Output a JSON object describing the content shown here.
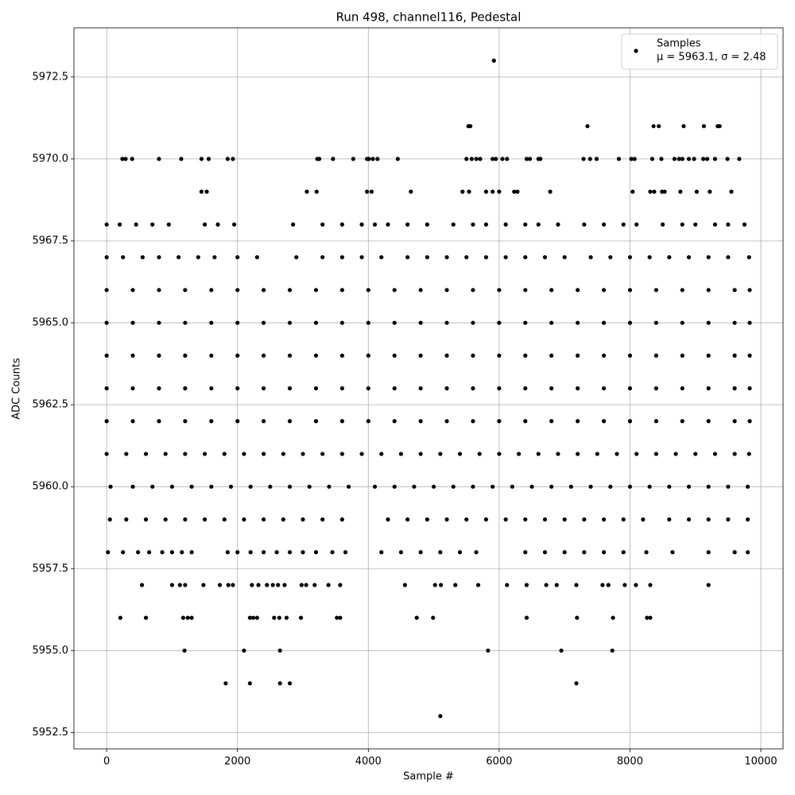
{
  "chart_data": {
    "type": "scatter",
    "title": "Run 498, channel116, Pedestal",
    "x_label": "Sample #",
    "y_label": "ADC Counts",
    "annotation": "μ = 5963.1, σ = 2.48",
    "legend": "upper right",
    "grid": true,
    "xlim": [
      -500,
      10340
    ],
    "ylim": [
      5952.0,
      5974.0
    ],
    "xticks": [
      0,
      2000,
      4000,
      6000,
      8000,
      10000
    ],
    "yticks": [
      5952.5,
      {
        "value": 5955,
        "label": "5955.0"
      },
      5957.5,
      {
        "value": 5960,
        "label": "5960.0"
      },
      5962.5,
      {
        "value": 5965,
        "label": "5965.0"
      },
      5967.5,
      {
        "value": 5970,
        "label": "5970.0"
      },
      5972.5
    ],
    "series": [
      {
        "name": "Samples",
        "color": "#000000",
        "x": [
          5920,
          5100,
          1820,
          2190,
          2650,
          2800,
          7180,
          1190,
          2100,
          2650,
          5830,
          6950,
          7730,
          210,
          600,
          1170,
          1240,
          1300,
          2190,
          2240,
          2300,
          2560,
          2640,
          2750,
          2970,
          3520,
          3570,
          4740,
          4990,
          6420,
          7190,
          7740,
          8260,
          8310,
          540,
          1000,
          1120,
          1200,
          1480,
          1730,
          1860,
          1930,
          2220,
          2320,
          2450,
          2540,
          2620,
          2720,
          2980,
          3050,
          3180,
          3390,
          3570,
          4560,
          5020,
          5110,
          5330,
          5680,
          6120,
          6420,
          6720,
          6880,
          7180,
          7580,
          7670,
          7920,
          8090,
          8310,
          9200,
          20,
          250,
          480,
          650,
          850,
          1000,
          1150,
          1300,
          1850,
          2000,
          2200,
          2400,
          2600,
          2800,
          3000,
          3200,
          3450,
          3650,
          4200,
          4500,
          4800,
          5100,
          5400,
          5650,
          6400,
          6700,
          7000,
          7300,
          7600,
          7900,
          8250,
          8650,
          9200,
          9600,
          9800,
          50,
          300,
          600,
          900,
          1200,
          1500,
          1800,
          2100,
          2400,
          2700,
          3000,
          3300,
          3600,
          4300,
          4600,
          4900,
          5200,
          5500,
          5800,
          6100,
          6400,
          6700,
          7000,
          7300,
          7600,
          7900,
          8200,
          8600,
          8900,
          9200,
          9500,
          9800,
          60,
          400,
          700,
          1000,
          1300,
          1600,
          1900,
          2200,
          2500,
          2800,
          3100,
          3400,
          3700,
          4100,
          4400,
          4700,
          5000,
          5300,
          5600,
          5900,
          6200,
          6500,
          6800,
          7100,
          7400,
          7700,
          8000,
          8300,
          8600,
          8900,
          9200,
          9500,
          9800,
          0,
          300,
          600,
          900,
          1200,
          1500,
          1800,
          2100,
          2400,
          2700,
          3000,
          3300,
          3600,
          3900,
          4200,
          4500,
          4800,
          5100,
          5400,
          5700,
          6000,
          6300,
          6600,
          6900,
          7200,
          7500,
          7800,
          8100,
          8400,
          8700,
          9000,
          9300,
          9600,
          9820,
          0,
          400,
          800,
          1200,
          1600,
          2000,
          2400,
          2800,
          3200,
          3600,
          4000,
          4400,
          4800,
          5200,
          5600,
          6000,
          6400,
          6800,
          7200,
          7600,
          8000,
          8400,
          8800,
          9200,
          9600,
          9830,
          0,
          400,
          800,
          1200,
          1600,
          2000,
          2400,
          2800,
          3200,
          3600,
          4000,
          4400,
          4800,
          5200,
          5600,
          6000,
          6400,
          6800,
          7200,
          7600,
          8000,
          8400,
          8800,
          9200,
          9600,
          9830,
          0,
          400,
          800,
          1200,
          1600,
          2000,
          2400,
          2800,
          3200,
          3600,
          4000,
          4400,
          4800,
          5200,
          5600,
          6000,
          6400,
          6800,
          7200,
          7600,
          8000,
          8400,
          8800,
          9200,
          9600,
          9830,
          0,
          400,
          800,
          1200,
          1600,
          2000,
          2400,
          2800,
          3200,
          3600,
          4000,
          4400,
          4800,
          5200,
          5600,
          6000,
          6400,
          6800,
          7200,
          7600,
          8000,
          8400,
          8800,
          9200,
          9600,
          9830,
          0,
          400,
          800,
          1200,
          1600,
          2000,
          2400,
          2800,
          3200,
          3600,
          4000,
          4400,
          4800,
          5200,
          5600,
          6000,
          6400,
          6800,
          7200,
          7600,
          8000,
          8400,
          8800,
          9200,
          9600,
          9830,
          0,
          250,
          550,
          800,
          1100,
          1400,
          1650,
          2000,
          2300,
          2900,
          3300,
          3600,
          3900,
          4200,
          4600,
          4900,
          5200,
          5500,
          5800,
          6100,
          6400,
          6700,
          7000,
          7400,
          7700,
          8000,
          8300,
          8600,
          8900,
          9200,
          9500,
          9820,
          0,
          200,
          450,
          700,
          950,
          1500,
          1700,
          1950,
          2850,
          3300,
          3600,
          3900,
          4100,
          4300,
          4600,
          4900,
          5300,
          5600,
          5800,
          6100,
          6400,
          6600,
          6900,
          7300,
          7600,
          7900,
          8100,
          8500,
          8800,
          9000,
          9300,
          9500,
          9750,
          1450,
          1530,
          3060,
          3210,
          3980,
          4050,
          4650,
          5440,
          5540,
          5800,
          5900,
          6000,
          6230,
          6280,
          6780,
          8040,
          8310,
          8370,
          8490,
          8530,
          8770,
          9020,
          9220,
          9550,
          240,
          290,
          390,
          800,
          1140,
          1450,
          1560,
          1850,
          1930,
          3220,
          3250,
          3460,
          3770,
          3980,
          4010,
          4070,
          4140,
          4450,
          5500,
          5580,
          5650,
          5710,
          5900,
          5950,
          6050,
          6120,
          6420,
          6470,
          6600,
          6630,
          7290,
          7390,
          7490,
          7830,
          8020,
          8070,
          8340,
          8480,
          8680,
          8750,
          8800,
          8900,
          8980,
          9120,
          9180,
          9300,
          9490,
          9670,
          5530,
          5560,
          7350,
          8360,
          8440,
          8820,
          9130,
          9340,
          9370
        ],
        "values": [
          5973,
          5953,
          5954,
          5954,
          5954,
          5954,
          5954,
          5955,
          5955,
          5955,
          5955,
          5955,
          5955,
          5956,
          5956,
          5956,
          5956,
          5956,
          5956,
          5956,
          5956,
          5956,
          5956,
          5956,
          5956,
          5956,
          5956,
          5956,
          5956,
          5956,
          5956,
          5956,
          5956,
          5956,
          5957,
          5957,
          5957,
          5957,
          5957,
          5957,
          5957,
          5957,
          5957,
          5957,
          5957,
          5957,
          5957,
          5957,
          5957,
          5957,
          5957,
          5957,
          5957,
          5957,
          5957,
          5957,
          5957,
          5957,
          5957,
          5957,
          5957,
          5957,
          5957,
          5957,
          5957,
          5957,
          5957,
          5957,
          5957,
          5958,
          5958,
          5958,
          5958,
          5958,
          5958,
          5958,
          5958,
          5958,
          5958,
          5958,
          5958,
          5958,
          5958,
          5958,
          5958,
          5958,
          5958,
          5958,
          5958,
          5958,
          5958,
          5958,
          5958,
          5958,
          5958,
          5958,
          5958,
          5958,
          5958,
          5958,
          5958,
          5958,
          5958,
          5958,
          5959,
          5959,
          5959,
          5959,
          5959,
          5959,
          5959,
          5959,
          5959,
          5959,
          5959,
          5959,
          5959,
          5959,
          5959,
          5959,
          5959,
          5959,
          5959,
          5959,
          5959,
          5959,
          5959,
          5959,
          5959,
          5959,
          5959,
          5959,
          5959,
          5959,
          5959,
          5959,
          5960,
          5960,
          5960,
          5960,
          5960,
          5960,
          5960,
          5960,
          5960,
          5960,
          5960,
          5960,
          5960,
          5960,
          5960,
          5960,
          5960,
          5960,
          5960,
          5960,
          5960,
          5960,
          5960,
          5960,
          5960,
          5960,
          5960,
          5960,
          5960,
          5960,
          5960,
          5960,
          5960,
          5961,
          5961,
          5961,
          5961,
          5961,
          5961,
          5961,
          5961,
          5961,
          5961,
          5961,
          5961,
          5961,
          5961,
          5961,
          5961,
          5961,
          5961,
          5961,
          5961,
          5961,
          5961,
          5961,
          5961,
          5961,
          5961,
          5961,
          5961,
          5961,
          5961,
          5961,
          5961,
          5961,
          5961,
          5962,
          5962,
          5962,
          5962,
          5962,
          5962,
          5962,
          5962,
          5962,
          5962,
          5962,
          5962,
          5962,
          5962,
          5962,
          5962,
          5962,
          5962,
          5962,
          5962,
          5962,
          5962,
          5962,
          5962,
          5962,
          5962,
          5963,
          5963,
          5963,
          5963,
          5963,
          5963,
          5963,
          5963,
          5963,
          5963,
          5963,
          5963,
          5963,
          5963,
          5963,
          5963,
          5963,
          5963,
          5963,
          5963,
          5963,
          5963,
          5963,
          5963,
          5963,
          5963,
          5964,
          5964,
          5964,
          5964,
          5964,
          5964,
          5964,
          5964,
          5964,
          5964,
          5964,
          5964,
          5964,
          5964,
          5964,
          5964,
          5964,
          5964,
          5964,
          5964,
          5964,
          5964,
          5964,
          5964,
          5964,
          5964,
          5965,
          5965,
          5965,
          5965,
          5965,
          5965,
          5965,
          5965,
          5965,
          5965,
          5965,
          5965,
          5965,
          5965,
          5965,
          5965,
          5965,
          5965,
          5965,
          5965,
          5965,
          5965,
          5965,
          5965,
          5965,
          5965,
          5966,
          5966,
          5966,
          5966,
          5966,
          5966,
          5966,
          5966,
          5966,
          5966,
          5966,
          5966,
          5966,
          5966,
          5966,
          5966,
          5966,
          5966,
          5966,
          5966,
          5966,
          5966,
          5966,
          5966,
          5966,
          5966,
          5967,
          5967,
          5967,
          5967,
          5967,
          5967,
          5967,
          5967,
          5967,
          5967,
          5967,
          5967,
          5967,
          5967,
          5967,
          5967,
          5967,
          5967,
          5967,
          5967,
          5967,
          5967,
          5967,
          5967,
          5967,
          5967,
          5967,
          5967,
          5967,
          5967,
          5967,
          5967,
          5968,
          5968,
          5968,
          5968,
          5968,
          5968,
          5968,
          5968,
          5968,
          5968,
          5968,
          5968,
          5968,
          5968,
          5968,
          5968,
          5968,
          5968,
          5968,
          5968,
          5968,
          5968,
          5968,
          5968,
          5968,
          5968,
          5968,
          5968,
          5968,
          5968,
          5968,
          5968,
          5968,
          5969,
          5969,
          5969,
          5969,
          5969,
          5969,
          5969,
          5969,
          5969,
          5969,
          5969,
          5969,
          5969,
          5969,
          5969,
          5969,
          5969,
          5969,
          5969,
          5969,
          5969,
          5969,
          5969,
          5969,
          5970,
          5970,
          5970,
          5970,
          5970,
          5970,
          5970,
          5970,
          5970,
          5970,
          5970,
          5970,
          5970,
          5970,
          5970,
          5970,
          5970,
          5970,
          5970,
          5970,
          5970,
          5970,
          5970,
          5970,
          5970,
          5970,
          5970,
          5970,
          5970,
          5970,
          5970,
          5970,
          5970,
          5970,
          5970,
          5970,
          5970,
          5970,
          5970,
          5970,
          5970,
          5970,
          5970,
          5970,
          5970,
          5970,
          5970,
          5970,
          5971,
          5971,
          5971,
          5971,
          5971,
          5971,
          5971,
          5971,
          5971
        ]
      }
    ]
  }
}
